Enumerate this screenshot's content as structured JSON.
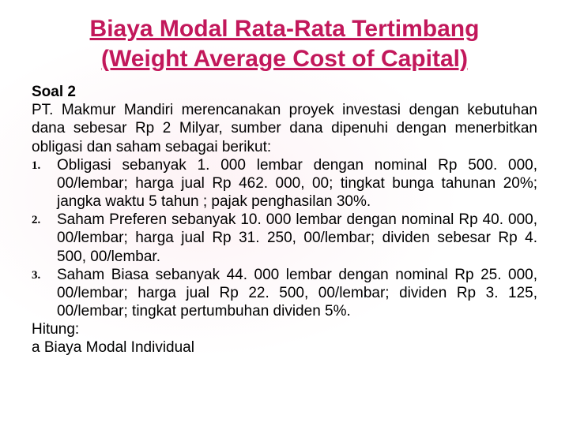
{
  "title_line1": "Biaya Modal Rata-Rata Tertimbang",
  "title_line2": "(Weight Average Cost of Capital)",
  "soal_label": "Soal 2",
  "intro": "PT. Makmur Mandiri merencanakan proyek investasi dengan kebutuhan dana sebesar Rp 2 Milyar, sumber dana dipenuhi dengan menerbitkan obligasi dan saham sebagai berikut:",
  "items": {
    "0": "Obligasi sebanyak 1. 000 lembar dengan nominal Rp 500. 000, 00/lembar; harga jual Rp 462. 000, 00; tingkat bunga tahunan 20%; jangka waktu 5 tahun ; pajak penghasilan 30%.",
    "1": "Saham Preferen sebanyak 10. 000 lembar  dengan nominal Rp 40. 000, 00/lembar; harga jual Rp 31. 250, 00/lembar; dividen sebesar Rp 4. 500, 00/lembar.",
    "2": "Saham Biasa sebanyak 44. 000 lembar dengan nominal Rp 25. 000, 00/lembar; harga jual Rp 22. 500, 00/lembar; dividen Rp 3. 125, 00/lembar; tingkat pertumbuhan dividen 5%."
  },
  "hitung": "Hitung:",
  "cutoff": "a  Biaya Modal Individual",
  "colors": {
    "title": "#c2185b",
    "text": "#000000",
    "bg_tint": "#fdf2f5",
    "bg": "#ffffff"
  },
  "fontsize": {
    "title": 30,
    "body": 19,
    "list_marker": 15
  }
}
